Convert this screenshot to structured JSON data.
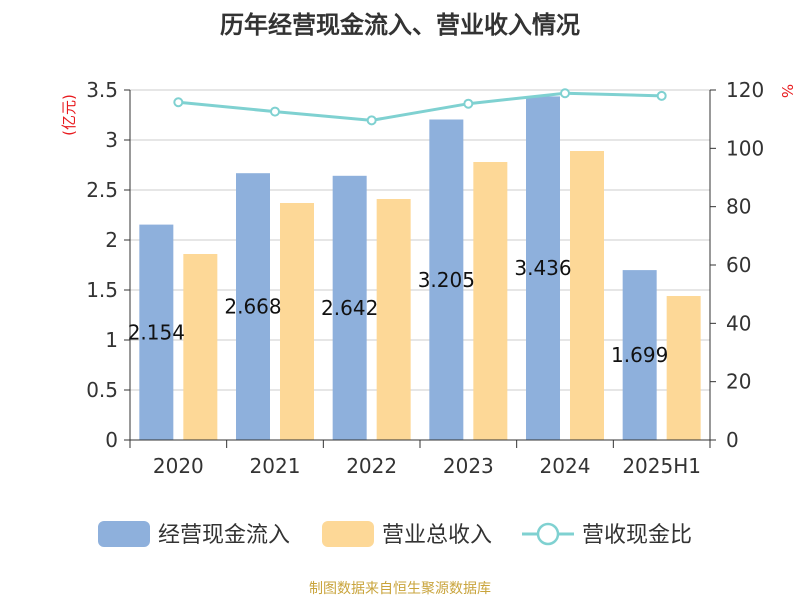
{
  "chart_data": {
    "type": "bar",
    "title": "历年经营现金流入、营业收入情况",
    "categories": [
      "2020",
      "2021",
      "2022",
      "2023",
      "2024",
      "2025H1"
    ],
    "series": [
      {
        "name": "经营现金流入",
        "type": "bar",
        "axis": "left",
        "values": [
          2.154,
          2.668,
          2.642,
          3.205,
          3.436,
          1.699
        ],
        "labels": [
          "2.154",
          "2.668",
          "2.642",
          "3.205",
          "3.436",
          "1.699"
        ],
        "color": "#8eb0dc"
      },
      {
        "name": "营业总收入",
        "type": "bar",
        "axis": "left",
        "values": [
          1.86,
          2.37,
          2.41,
          2.78,
          2.89,
          1.44
        ],
        "color": "#fdd897"
      },
      {
        "name": "营收现金比",
        "type": "line",
        "axis": "right",
        "values": [
          115.8,
          112.6,
          109.6,
          115.3,
          118.9,
          118.0
        ],
        "color": "#7fd1d1"
      }
    ],
    "yleft": {
      "label": "(亿元)",
      "ylim": [
        0,
        3.5
      ],
      "ticks": [
        "0",
        "0.5",
        "1",
        "1.5",
        "2",
        "2.5",
        "3",
        "3.5"
      ]
    },
    "yright": {
      "label": "%",
      "ylim": [
        0,
        120
      ],
      "ticks": [
        "0",
        "20",
        "40",
        "60",
        "80",
        "100",
        "120"
      ]
    },
    "grid": true,
    "legend_position": "bottom"
  },
  "source_text": "制图数据来自恒生聚源数据库"
}
